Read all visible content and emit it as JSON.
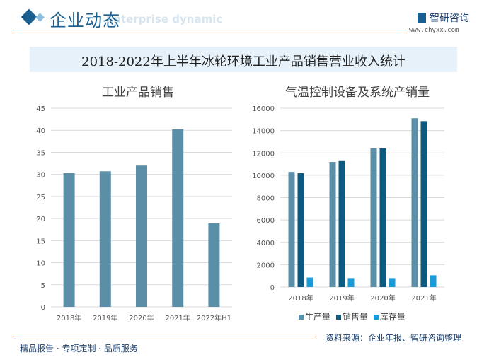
{
  "header": {
    "section_title": "企业动态",
    "section_subtitle": "Enterprise dynamic",
    "brand": "智研咨询",
    "brand_url": "www.chyxx.com"
  },
  "title": "2018-2022年上半年冰轮环境工业产品销售营业收入统计",
  "footer": {
    "left": "精品报告 · 专项定制 · 品质服务",
    "right": "资料来源：企业年报、智研咨询整理"
  },
  "chart_data": [
    {
      "type": "bar",
      "title": "工业产品销售",
      "categories": [
        "2018年",
        "2019年",
        "2020年",
        "2021年",
        "2022年H1"
      ],
      "values": [
        30.3,
        30.7,
        32.0,
        40.2,
        18.9
      ],
      "ylim": [
        0,
        45
      ],
      "yticks": [
        0,
        5,
        10,
        15,
        20,
        25,
        30,
        35,
        40,
        45
      ],
      "grid": true,
      "color": "#5b8fa8"
    },
    {
      "type": "bar",
      "title": "气温控制设备及系统产销量",
      "categories": [
        "2018年",
        "2019年",
        "2020年",
        "2021年"
      ],
      "series": [
        {
          "name": "生产量",
          "values": [
            10300,
            11190,
            12400,
            15100
          ],
          "color": "#5b8fa8"
        },
        {
          "name": "销售量",
          "values": [
            10180,
            11270,
            12400,
            14840
          ],
          "color": "#0d5a80"
        },
        {
          "name": "库存量",
          "values": [
            850,
            800,
            800,
            1050
          ],
          "color": "#1a9ad6"
        }
      ],
      "ylim": [
        0,
        16000
      ],
      "yticks": [
        0,
        2000,
        4000,
        6000,
        8000,
        10000,
        12000,
        14000,
        16000
      ],
      "grid": true,
      "legend": "bottom"
    }
  ]
}
